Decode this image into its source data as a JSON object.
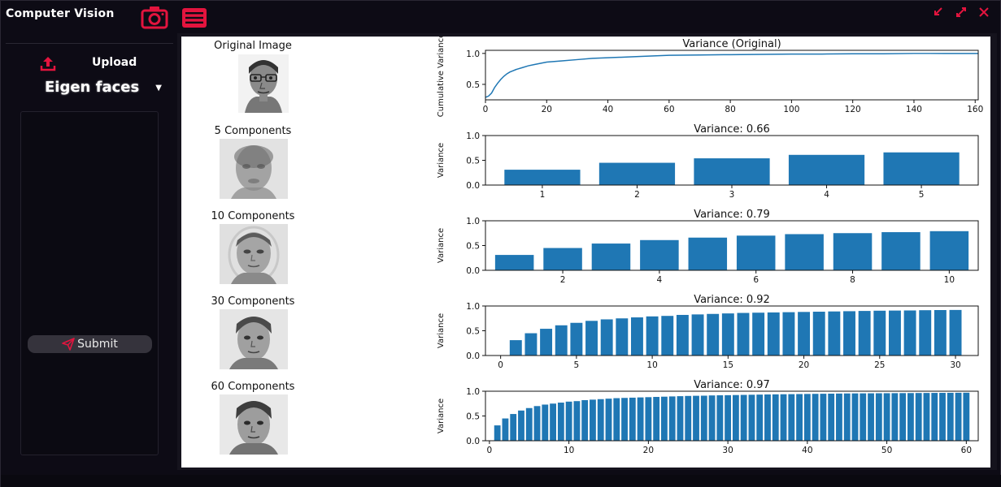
{
  "app": {
    "title": "Computer Vision",
    "accent_color": "#e3143e"
  },
  "sidebar": {
    "upload_label": "Upload",
    "method": "Eigen faces",
    "submit_label": "Submit"
  },
  "icons": {
    "camera": "camera-icon",
    "upload": "upload-icon",
    "dropdown": "chevron-down-icon",
    "submit": "send-icon",
    "menu": "menu-icon",
    "minimize": "minimize-icon",
    "maximize": "maximize-icon",
    "close": "close-icon"
  },
  "images": [
    {
      "label": "Original Image"
    },
    {
      "label": "5 Components"
    },
    {
      "label": "10 Components"
    },
    {
      "label": "30 Components"
    },
    {
      "label": "60 Components"
    }
  ],
  "chart_data": [
    {
      "type": "line",
      "title": "Variance (Original)",
      "ylabel": "Cumulative Variance",
      "xlabel": "",
      "xlim": [
        0,
        161
      ],
      "ylim": [
        0.25,
        1.05
      ],
      "xticks": [
        0,
        20,
        40,
        60,
        80,
        100,
        120,
        140,
        160
      ],
      "yticks": [
        0.5,
        1.0
      ],
      "x": [
        0,
        1,
        2,
        3,
        4,
        5,
        6,
        7,
        8,
        9,
        10,
        12,
        14,
        16,
        18,
        20,
        25,
        30,
        35,
        40,
        50,
        60,
        70,
        80,
        90,
        100,
        110,
        120,
        130,
        140,
        150,
        161
      ],
      "y": [
        0.29,
        0.31,
        0.36,
        0.45,
        0.52,
        0.58,
        0.63,
        0.67,
        0.7,
        0.72,
        0.74,
        0.77,
        0.8,
        0.82,
        0.84,
        0.86,
        0.88,
        0.9,
        0.92,
        0.93,
        0.95,
        0.97,
        0.975,
        0.98,
        0.985,
        0.99,
        0.99,
        0.995,
        0.995,
        1.0,
        1.0,
        1.0
      ],
      "color": "#1f77b4"
    },
    {
      "type": "bar",
      "title": "Variance: 0.66",
      "ylabel": "Variance",
      "ylim": [
        0,
        1.0
      ],
      "yticks": [
        0.0,
        0.5,
        1.0
      ],
      "x": [
        1,
        2,
        3,
        4,
        5
      ],
      "values": [
        0.31,
        0.45,
        0.54,
        0.61,
        0.66
      ],
      "xticks": [
        1,
        2,
        3,
        4,
        5
      ],
      "xlim": [
        0.4,
        5.6
      ],
      "color": "#1f77b4"
    },
    {
      "type": "bar",
      "title": "Variance: 0.79",
      "ylabel": "Variance",
      "ylim": [
        0,
        1.0
      ],
      "yticks": [
        0.0,
        0.5,
        1.0
      ],
      "x": [
        1,
        2,
        3,
        4,
        5,
        6,
        7,
        8,
        9,
        10
      ],
      "values": [
        0.31,
        0.45,
        0.54,
        0.61,
        0.66,
        0.7,
        0.73,
        0.75,
        0.77,
        0.79
      ],
      "xticks": [
        2,
        4,
        6,
        8,
        10
      ],
      "xlim": [
        0.4,
        10.6
      ],
      "color": "#1f77b4"
    },
    {
      "type": "bar",
      "title": "Variance: 0.92",
      "ylabel": "Variance",
      "ylim": [
        0,
        1.0
      ],
      "yticks": [
        0.0,
        0.5,
        1.0
      ],
      "x": [
        1,
        2,
        3,
        4,
        5,
        6,
        7,
        8,
        9,
        10,
        11,
        12,
        13,
        14,
        15,
        16,
        17,
        18,
        19,
        20,
        21,
        22,
        23,
        24,
        25,
        26,
        27,
        28,
        29,
        30
      ],
      "values": [
        0.31,
        0.45,
        0.54,
        0.61,
        0.66,
        0.7,
        0.73,
        0.75,
        0.77,
        0.79,
        0.8,
        0.82,
        0.83,
        0.84,
        0.85,
        0.86,
        0.865,
        0.87,
        0.875,
        0.88,
        0.885,
        0.89,
        0.895,
        0.9,
        0.905,
        0.908,
        0.91,
        0.915,
        0.918,
        0.92
      ],
      "xticks": [
        0,
        5,
        10,
        15,
        20,
        25,
        30
      ],
      "xlim": [
        -1,
        31.5
      ],
      "color": "#1f77b4"
    },
    {
      "type": "bar",
      "title": "Variance: 0.97",
      "ylabel": "Variance",
      "ylim": [
        0,
        1.0
      ],
      "yticks": [
        0.0,
        0.5,
        1.0
      ],
      "x": [
        1,
        2,
        3,
        4,
        5,
        6,
        7,
        8,
        9,
        10,
        11,
        12,
        13,
        14,
        15,
        16,
        17,
        18,
        19,
        20,
        21,
        22,
        23,
        24,
        25,
        26,
        27,
        28,
        29,
        30,
        31,
        32,
        33,
        34,
        35,
        36,
        37,
        38,
        39,
        40,
        41,
        42,
        43,
        44,
        45,
        46,
        47,
        48,
        49,
        50,
        51,
        52,
        53,
        54,
        55,
        56,
        57,
        58,
        59,
        60
      ],
      "values": [
        0.31,
        0.45,
        0.54,
        0.61,
        0.66,
        0.7,
        0.73,
        0.75,
        0.77,
        0.79,
        0.8,
        0.82,
        0.83,
        0.84,
        0.85,
        0.86,
        0.865,
        0.87,
        0.875,
        0.88,
        0.885,
        0.89,
        0.895,
        0.9,
        0.905,
        0.908,
        0.91,
        0.915,
        0.918,
        0.92,
        0.923,
        0.926,
        0.929,
        0.932,
        0.935,
        0.937,
        0.939,
        0.941,
        0.943,
        0.945,
        0.947,
        0.949,
        0.951,
        0.953,
        0.955,
        0.956,
        0.957,
        0.958,
        0.959,
        0.96,
        0.961,
        0.962,
        0.963,
        0.964,
        0.965,
        0.966,
        0.967,
        0.968,
        0.969,
        0.97
      ],
      "xticks": [
        0,
        10,
        20,
        30,
        40,
        50,
        60
      ],
      "xlim": [
        -0.5,
        61.5
      ],
      "color": "#1f77b4"
    }
  ]
}
